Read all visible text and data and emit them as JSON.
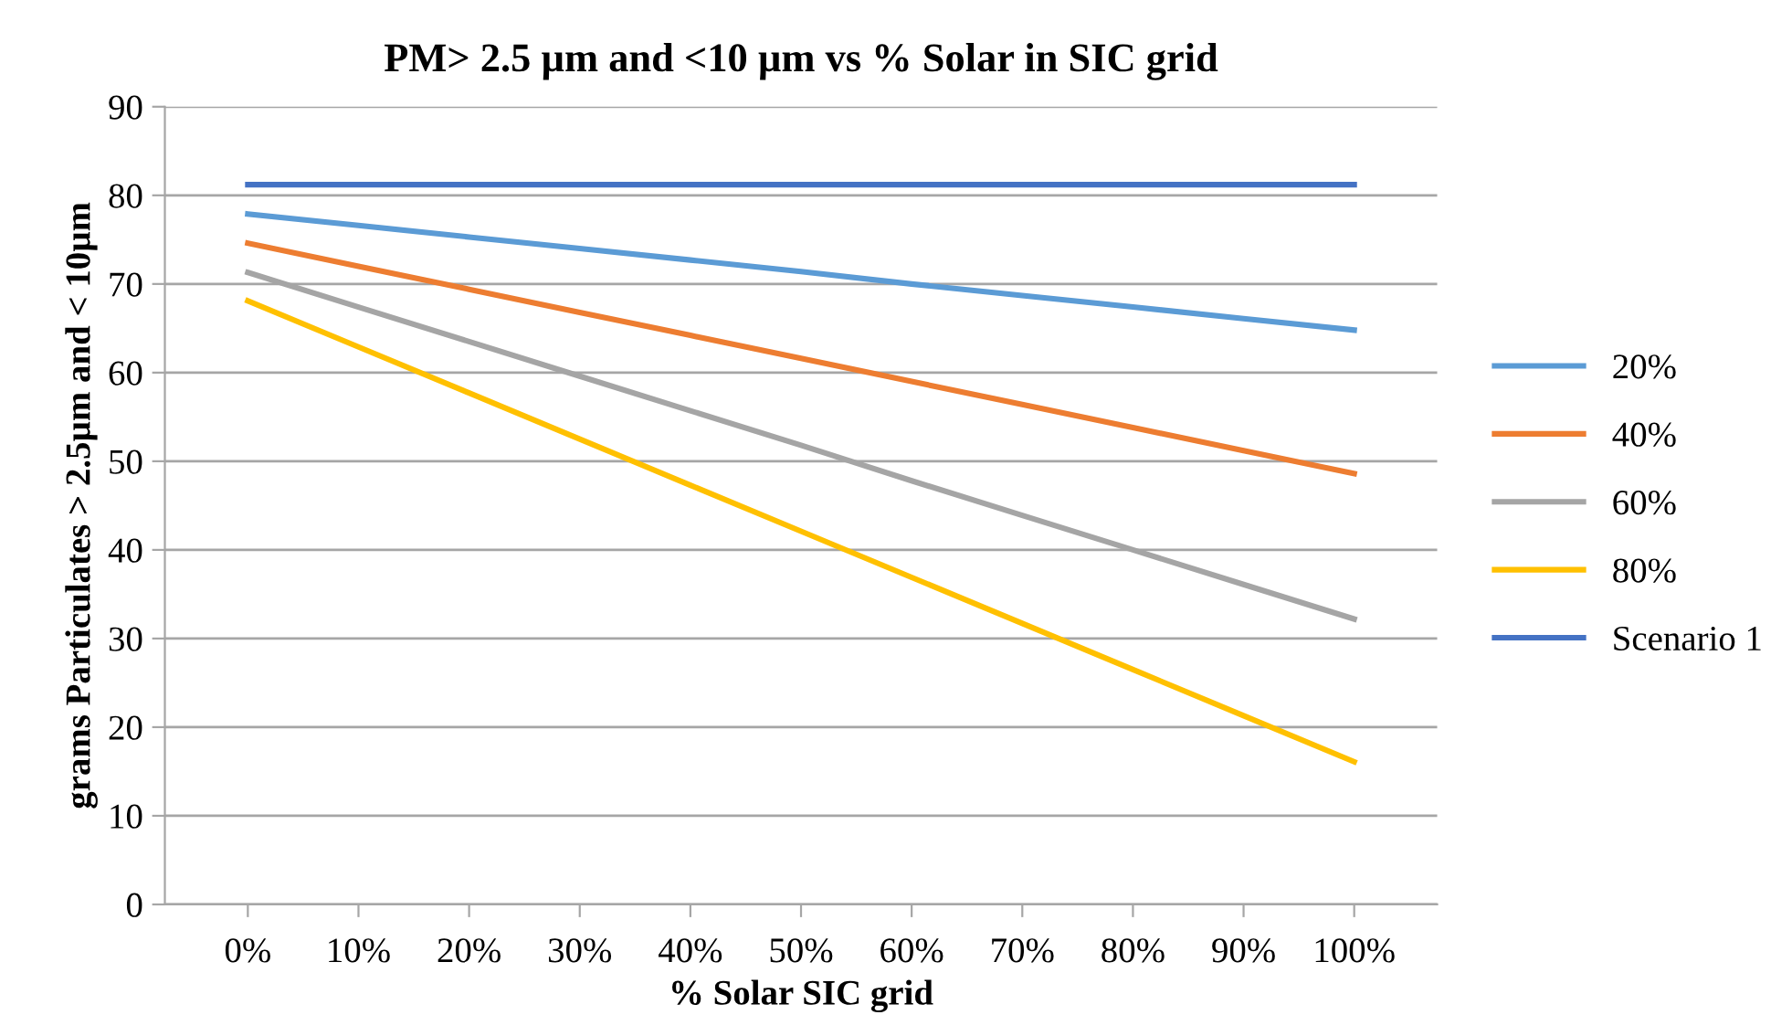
{
  "chart_data": {
    "type": "line",
    "title": "PM> 2.5 µm and <10 µm vs % Solar in SIC grid",
    "xlabel": "% Solar SIC grid",
    "ylabel": "grams Particulates > 2.5µm and < 10µm",
    "categories": [
      "0%",
      "10%",
      "20%",
      "30%",
      "40%",
      "50%",
      "60%",
      "70%",
      "80%",
      "90%",
      "100%"
    ],
    "series": [
      {
        "name": "20%",
        "color": "#5b9bd5",
        "values": [
          77.9,
          76.6,
          75.3,
          74.0,
          72.7,
          71.4,
          70.0,
          68.7,
          67.4,
          66.1,
          64.8
        ]
      },
      {
        "name": "40%",
        "color": "#ed7d31",
        "values": [
          74.6,
          72.0,
          69.4,
          66.8,
          64.2,
          61.6,
          59.0,
          56.4,
          53.8,
          51.2,
          48.6
        ]
      },
      {
        "name": "60%",
        "color": "#a5a5a5",
        "values": [
          71.3,
          67.4,
          63.5,
          59.6,
          55.7,
          51.8,
          47.8,
          43.9,
          40.0,
          36.1,
          32.2
        ]
      },
      {
        "name": "80%",
        "color": "#ffc000",
        "values": [
          68.1,
          62.9,
          57.7,
          52.5,
          47.3,
          42.1,
          36.9,
          31.7,
          26.5,
          21.3,
          16.1
        ]
      },
      {
        "name": "Scenario 1",
        "color": "#4472c4",
        "values": [
          81.2,
          81.2,
          81.2,
          81.2,
          81.2,
          81.2,
          81.2,
          81.2,
          81.2,
          81.2,
          81.2
        ]
      }
    ],
    "ylim": [
      0,
      90
    ],
    "yticks": [
      0,
      10,
      20,
      30,
      40,
      50,
      60,
      70,
      80,
      90
    ],
    "grid": "y",
    "legend": "right",
    "marker": "none",
    "line_style": "solid"
  }
}
